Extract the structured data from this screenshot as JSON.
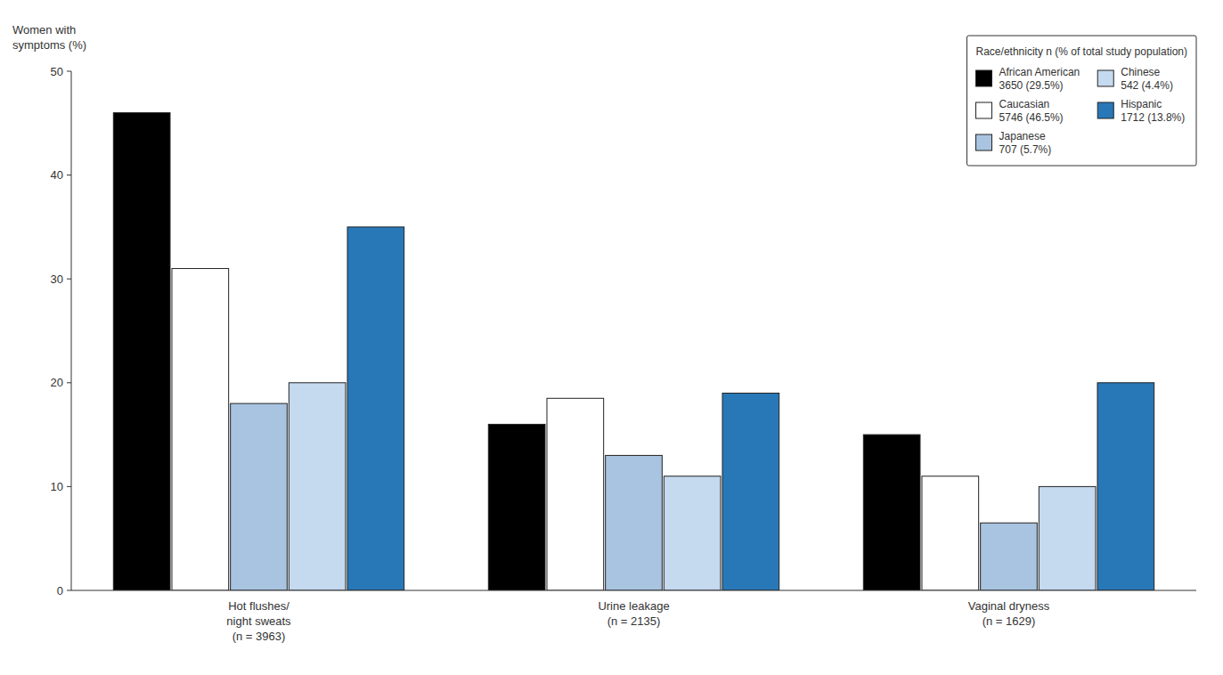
{
  "chart_data": {
    "type": "bar",
    "y_label": "Women with\nsymptoms (%)",
    "legend_title": "Race/ethnicity n (% of total study population)",
    "categories": [
      "Hot flushes/\nnight sweats\n(n = 3963)",
      "Urine leakage\n(n = 2135)",
      "Vaginal dryness\n(n = 1629)"
    ],
    "series": [
      {
        "name": "African American\n3650 (29.5%)",
        "color": "#000000",
        "values": [
          46,
          16,
          15
        ]
      },
      {
        "name": "Caucasian\n5746 (46.5%)",
        "color": "#ffffff",
        "values": [
          31,
          18.5,
          11
        ]
      },
      {
        "name": "Japanese\n707 (5.7%)",
        "color": "#a8c4e0",
        "values": [
          18,
          13,
          6.5
        ]
      },
      {
        "name": "Chinese\n542 (4.4%)",
        "color": "#c5d9ef",
        "values": [
          20,
          11,
          10
        ]
      },
      {
        "name": "Hispanic\n1712 (13.8%)",
        "color": "#2878b8",
        "values": [
          35,
          19,
          20
        ]
      }
    ],
    "ylim": [
      0,
      50
    ],
    "yticks": [
      0,
      10,
      20,
      30,
      40,
      50
    ],
    "grid": false,
    "legend": "upper right"
  }
}
